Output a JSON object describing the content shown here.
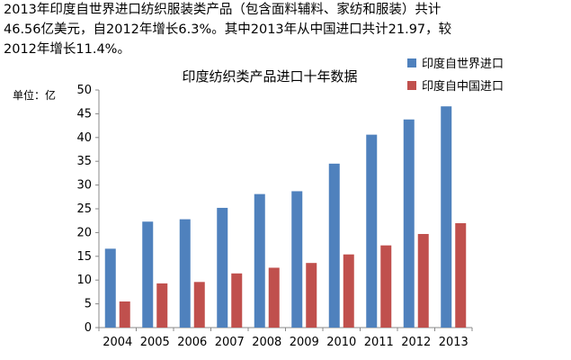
{
  "intro": {
    "line1": "2013年印度自世界进口纺织服装类产品（包含面料辅料、家纺和服装）共计",
    "line2": "46.56亿美元，自2012年增长6.3%。其中2013年从中国进口共计21.97，较",
    "line3": "2012年增长11.4%。"
  },
  "chart_data": {
    "type": "bar",
    "title": "印度纺织类产品进口十年数据",
    "ylabel": "单位：亿",
    "xlabel": "",
    "categories": [
      "2004",
      "2005",
      "2006",
      "2007",
      "2008",
      "2009",
      "2010",
      "2011",
      "2012",
      "2013"
    ],
    "series": [
      {
        "name": "印度自世界进口",
        "color": "#4F81BD",
        "values": [
          16.6,
          22.3,
          22.8,
          25.2,
          28.1,
          28.7,
          34.5,
          40.6,
          43.8,
          46.56
        ]
      },
      {
        "name": "印度自中国进口",
        "color": "#C0504D",
        "values": [
          5.5,
          9.3,
          9.6,
          11.4,
          12.6,
          13.6,
          15.4,
          17.3,
          19.7,
          21.97
        ]
      }
    ],
    "ylim": [
      0,
      50
    ],
    "yticks": [
      0,
      5,
      10,
      15,
      20,
      25,
      30,
      35,
      40,
      45,
      50
    ],
    "grid": false,
    "legend_position": "top-right"
  }
}
